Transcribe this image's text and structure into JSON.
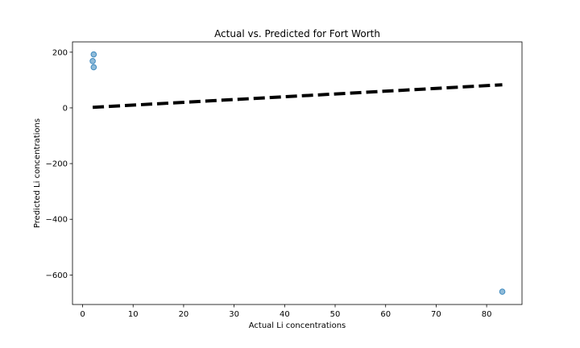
{
  "chart_data": {
    "type": "scatter",
    "title": "Actual vs. Predicted for Fort Worth",
    "xlabel": "Actual Li concentrations",
    "ylabel": "Predicted Li concentrations",
    "xlim": [
      -2,
      87
    ],
    "ylim": [
      -706,
      237
    ],
    "xticks": [
      0,
      10,
      20,
      30,
      40,
      50,
      60,
      70,
      80
    ],
    "yticks": [
      200,
      0,
      -200,
      -400,
      -600
    ],
    "ytick_labels": [
      "200",
      "0",
      "−200",
      "−400",
      "−600"
    ],
    "grid": false,
    "points": [
      {
        "x": 2.2,
        "y": 192
      },
      {
        "x": 2.0,
        "y": 168
      },
      {
        "x": 2.2,
        "y": 146
      },
      {
        "x": 83.1,
        "y": -660
      }
    ],
    "reference_line": {
      "x": [
        2.0,
        83.1
      ],
      "y": [
        2.0,
        83.1
      ],
      "style": "dashed",
      "color": "#000000"
    },
    "colors": {
      "points": "#1f77b4",
      "line": "#000000"
    }
  }
}
